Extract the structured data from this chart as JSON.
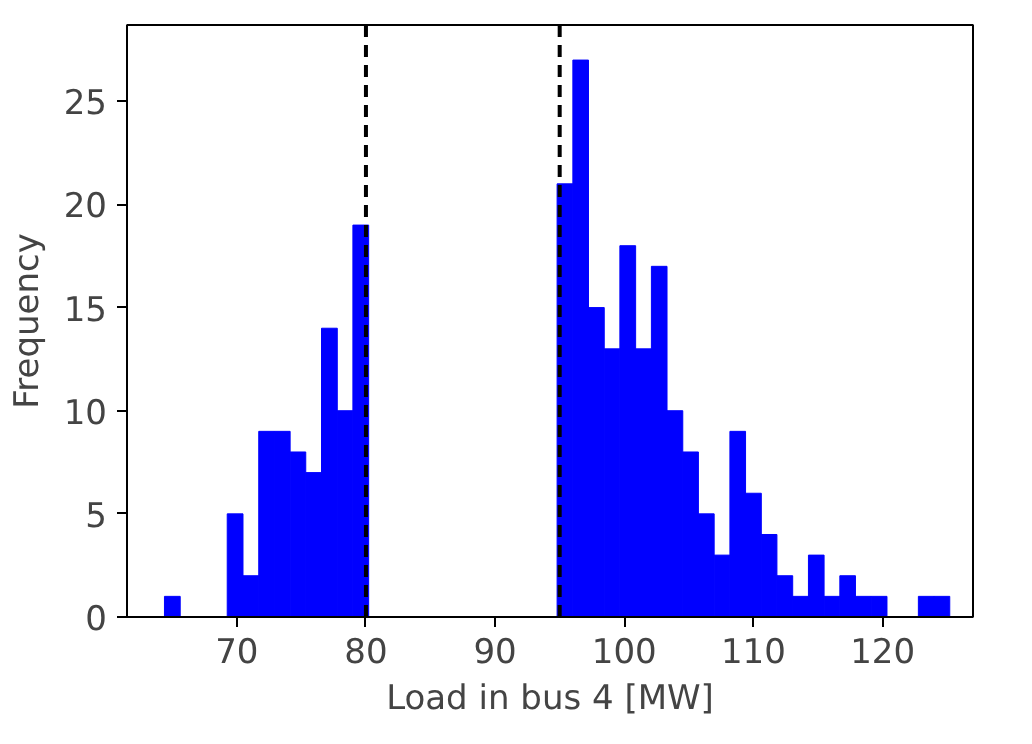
{
  "chart_data": {
    "type": "histogram",
    "xlabel": "Load in bus 4 [MW]",
    "ylabel": "Frequency",
    "color": "#0000ff",
    "bins": [
      64.4,
      65.62,
      66.83,
      68.05,
      69.26,
      70.48,
      71.7,
      72.91,
      74.13,
      75.34,
      76.56,
      77.78,
      78.99,
      80.21,
      81.42,
      82.64,
      83.86,
      85.07,
      86.29,
      87.5,
      88.72,
      89.94,
      91.15,
      92.37,
      93.58,
      94.8,
      96.02,
      97.23,
      98.45,
      99.66,
      100.88,
      102.1,
      103.31,
      104.53,
      105.74,
      106.96,
      108.18,
      109.39,
      110.61,
      111.82,
      113.04,
      114.26,
      115.47,
      116.69,
      117.9,
      119.12,
      120.34,
      121.55,
      122.77,
      123.98,
      125.2
    ],
    "values": [
      1,
      0,
      0,
      0,
      5,
      2,
      9,
      9,
      8,
      7,
      14,
      10,
      19,
      0,
      0,
      0,
      0,
      0,
      0,
      0,
      0,
      0,
      0,
      0,
      0,
      21,
      27,
      15,
      13,
      18,
      13,
      17,
      10,
      8,
      5,
      3,
      9,
      6,
      4,
      2,
      1,
      3,
      1,
      2,
      1,
      1,
      0,
      0,
      1,
      1
    ],
    "xlim": [
      61.5,
      127.0
    ],
    "ylim": [
      0,
      28.7
    ],
    "xticks": [
      70,
      80,
      90,
      100,
      110,
      120
    ],
    "yticks": [
      0,
      5,
      10,
      15,
      20,
      25
    ],
    "grid": false,
    "ref_lines": [
      {
        "axis": "x",
        "value": 80,
        "color": "#000000",
        "line_style": "dashed"
      },
      {
        "axis": "x",
        "value": 95,
        "color": "#000000",
        "line_style": "dashed"
      }
    ]
  }
}
